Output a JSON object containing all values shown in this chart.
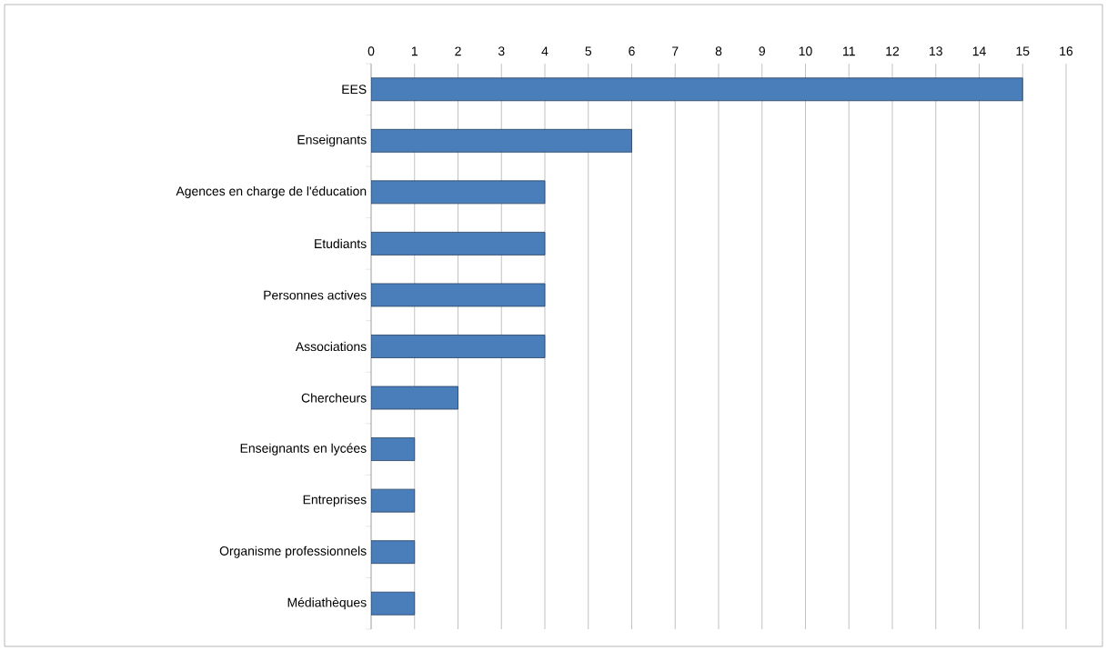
{
  "chart_data": {
    "type": "bar",
    "orientation": "horizontal",
    "categories": [
      "EES",
      "Enseignants",
      "Agences en charge de l'éducation",
      "Etudiants",
      "Personnes actives",
      "Associations",
      "Chercheurs",
      "Enseignants en lycées",
      "Entreprises",
      "Organisme professionnels",
      "Médiathèques"
    ],
    "values": [
      15,
      6,
      4,
      4,
      4,
      4,
      2,
      1,
      1,
      1,
      1
    ],
    "color": "#4a7ebb",
    "xlim": [
      0,
      16
    ],
    "xticks": [
      0,
      1,
      2,
      3,
      4,
      5,
      6,
      7,
      8,
      9,
      10,
      11,
      12,
      13,
      14,
      15,
      16
    ],
    "grid": "x"
  }
}
